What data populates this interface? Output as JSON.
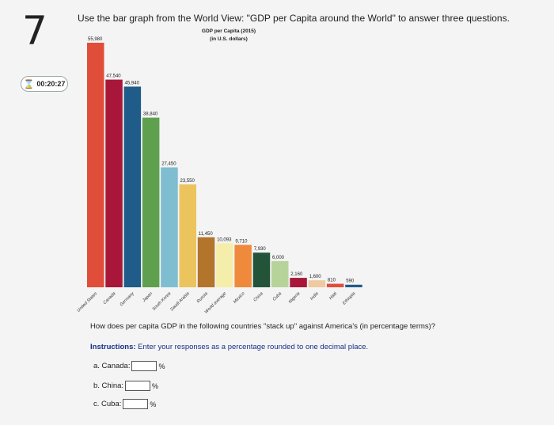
{
  "question_number": "7",
  "timer": "00:20:27",
  "question_text": "Use the bar graph from the World View: \"GDP per Capita around the World\" to answer three questions.",
  "sub_question": "How does per capita GDP in the following countries \"stack up\" against America's (in percentage terms)?",
  "instructions": {
    "label": "Instructions:",
    "text": "Enter your responses as a percentage rounded to one decimal place."
  },
  "answers": [
    {
      "label": "a. Canada:",
      "value": "",
      "unit": "%"
    },
    {
      "label": "b. China:",
      "value": "",
      "unit": "%"
    },
    {
      "label": "c. Cuba:",
      "value": "",
      "unit": "%"
    }
  ],
  "chart_data": {
    "type": "bar",
    "title": "GDP per Capita (2015)",
    "subtitle": "(in U.S. dollars)",
    "categories": [
      "United States",
      "Canada",
      "Germany",
      "Japan",
      "South Korea",
      "Saudi Arabia",
      "Russia",
      "World average",
      "Mexico",
      "China",
      "Cuba",
      "Nigeria",
      "India",
      "Haiti",
      "Ethiopia"
    ],
    "values": [
      55980,
      47540,
      45940,
      38840,
      27450,
      23550,
      11450,
      10093,
      9710,
      7930,
      6000,
      2160,
      1600,
      810,
      590
    ],
    "value_labels": [
      "55,980",
      "47,540",
      "45,940",
      "38,840",
      "27,450",
      "23,550",
      "11,450",
      "10,093",
      "9,710",
      "7,930",
      "6,000",
      "2,160",
      "1,600",
      "810",
      "590"
    ],
    "colors": [
      "#e04e3a",
      "#a8173a",
      "#1f5c8a",
      "#5fa04e",
      "#7fbdd0",
      "#ecc45e",
      "#b3742c",
      "#f5eeaa",
      "#ef8a3c",
      "#23543a",
      "#b6d49a",
      "#a8173a",
      "#efc9a0",
      "#e04e3a",
      "#1f5c8a"
    ],
    "ylim": [
      0,
      55980
    ],
    "grid": false
  }
}
